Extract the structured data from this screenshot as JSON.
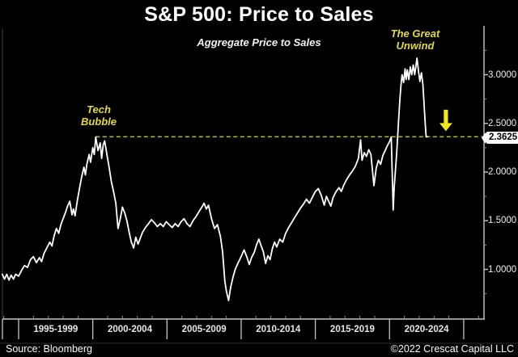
{
  "chart_data": {
    "type": "line",
    "title": "S&P 500: Price to Sales",
    "subtitle": "Aggregate Price to Sales",
    "series": [
      {
        "name": "S&P 500 aggregate price-to-sales ratio",
        "color": "#ffffff",
        "points": [
          [
            1993.9,
            0.95
          ],
          [
            1994.05,
            0.9
          ],
          [
            1994.2,
            0.95
          ],
          [
            1994.35,
            0.89
          ],
          [
            1994.5,
            0.94
          ],
          [
            1994.65,
            0.9
          ],
          [
            1994.8,
            0.95
          ],
          [
            1995.0,
            0.93
          ],
          [
            1995.2,
            0.99
          ],
          [
            1995.4,
            1.04
          ],
          [
            1995.6,
            1.02
          ],
          [
            1995.8,
            1.1
          ],
          [
            1996.0,
            1.13
          ],
          [
            1996.2,
            1.07
          ],
          [
            1996.4,
            1.12
          ],
          [
            1996.55,
            1.08
          ],
          [
            1996.7,
            1.16
          ],
          [
            1996.9,
            1.22
          ],
          [
            1997.1,
            1.28
          ],
          [
            1997.25,
            1.24
          ],
          [
            1997.4,
            1.35
          ],
          [
            1997.55,
            1.42
          ],
          [
            1997.7,
            1.37
          ],
          [
            1997.85,
            1.46
          ],
          [
            1998.0,
            1.52
          ],
          [
            1998.15,
            1.58
          ],
          [
            1998.3,
            1.65
          ],
          [
            1998.45,
            1.7
          ],
          [
            1998.6,
            1.56
          ],
          [
            1998.7,
            1.62
          ],
          [
            1998.8,
            1.55
          ],
          [
            1998.95,
            1.7
          ],
          [
            1999.1,
            1.83
          ],
          [
            1999.25,
            1.95
          ],
          [
            1999.4,
            2.05
          ],
          [
            1999.5,
            1.97
          ],
          [
            1999.6,
            2.08
          ],
          [
            1999.75,
            2.18
          ],
          [
            1999.85,
            2.1
          ],
          [
            2000.0,
            2.25
          ],
          [
            2000.1,
            2.18
          ],
          [
            2000.2,
            2.36
          ],
          [
            2000.35,
            2.22
          ],
          [
            2000.5,
            2.3
          ],
          [
            2000.6,
            2.14
          ],
          [
            2000.7,
            2.28
          ],
          [
            2000.8,
            2.32
          ],
          [
            2000.95,
            2.18
          ],
          [
            2001.1,
            2.05
          ],
          [
            2001.25,
            1.9
          ],
          [
            2001.4,
            1.8
          ],
          [
            2001.55,
            1.68
          ],
          [
            2001.7,
            1.42
          ],
          [
            2001.85,
            1.52
          ],
          [
            2002.0,
            1.64
          ],
          [
            2002.15,
            1.58
          ],
          [
            2002.3,
            1.5
          ],
          [
            2002.45,
            1.38
          ],
          [
            2002.6,
            1.28
          ],
          [
            2002.75,
            1.22
          ],
          [
            2002.9,
            1.33
          ],
          [
            2003.05,
            1.26
          ],
          [
            2003.2,
            1.32
          ],
          [
            2003.35,
            1.38
          ],
          [
            2003.55,
            1.43
          ],
          [
            2003.75,
            1.47
          ],
          [
            2003.95,
            1.51
          ],
          [
            2004.15,
            1.48
          ],
          [
            2004.35,
            1.44
          ],
          [
            2004.55,
            1.47
          ],
          [
            2004.75,
            1.44
          ],
          [
            2004.95,
            1.49
          ],
          [
            2005.15,
            1.46
          ],
          [
            2005.35,
            1.43
          ],
          [
            2005.55,
            1.47
          ],
          [
            2005.75,
            1.44
          ],
          [
            2005.95,
            1.49
          ],
          [
            2006.15,
            1.52
          ],
          [
            2006.35,
            1.47
          ],
          [
            2006.55,
            1.44
          ],
          [
            2006.75,
            1.5
          ],
          [
            2006.95,
            1.54
          ],
          [
            2007.15,
            1.59
          ],
          [
            2007.35,
            1.64
          ],
          [
            2007.5,
            1.68
          ],
          [
            2007.65,
            1.62
          ],
          [
            2007.8,
            1.66
          ],
          [
            2008.0,
            1.52
          ],
          [
            2008.2,
            1.42
          ],
          [
            2008.4,
            1.46
          ],
          [
            2008.6,
            1.34
          ],
          [
            2008.75,
            1.18
          ],
          [
            2008.9,
            0.88
          ],
          [
            2009.0,
            0.78
          ],
          [
            2009.15,
            0.68
          ],
          [
            2009.3,
            0.82
          ],
          [
            2009.45,
            0.92
          ],
          [
            2009.6,
            1.0
          ],
          [
            2009.8,
            1.07
          ],
          [
            2010.0,
            1.13
          ],
          [
            2010.2,
            1.2
          ],
          [
            2010.4,
            1.12
          ],
          [
            2010.55,
            1.05
          ],
          [
            2010.7,
            1.12
          ],
          [
            2010.9,
            1.18
          ],
          [
            2011.05,
            1.26
          ],
          [
            2011.2,
            1.31
          ],
          [
            2011.35,
            1.24
          ],
          [
            2011.5,
            1.18
          ],
          [
            2011.65,
            1.06
          ],
          [
            2011.8,
            1.14
          ],
          [
            2011.95,
            1.1
          ],
          [
            2012.1,
            1.21
          ],
          [
            2012.25,
            1.28
          ],
          [
            2012.4,
            1.23
          ],
          [
            2012.6,
            1.31
          ],
          [
            2012.8,
            1.28
          ],
          [
            2013.0,
            1.37
          ],
          [
            2013.2,
            1.43
          ],
          [
            2013.4,
            1.48
          ],
          [
            2013.6,
            1.53
          ],
          [
            2013.8,
            1.58
          ],
          [
            2014.0,
            1.63
          ],
          [
            2014.2,
            1.67
          ],
          [
            2014.4,
            1.72
          ],
          [
            2014.6,
            1.68
          ],
          [
            2014.8,
            1.74
          ],
          [
            2015.0,
            1.8
          ],
          [
            2015.2,
            1.83
          ],
          [
            2015.4,
            1.76
          ],
          [
            2015.6,
            1.66
          ],
          [
            2015.75,
            1.75
          ],
          [
            2015.9,
            1.7
          ],
          [
            2016.05,
            1.65
          ],
          [
            2016.2,
            1.74
          ],
          [
            2016.4,
            1.8
          ],
          [
            2016.6,
            1.84
          ],
          [
            2016.75,
            1.8
          ],
          [
            2016.9,
            1.86
          ],
          [
            2017.1,
            1.92
          ],
          [
            2017.3,
            1.97
          ],
          [
            2017.5,
            2.01
          ],
          [
            2017.7,
            2.06
          ],
          [
            2017.9,
            2.14
          ],
          [
            2018.05,
            2.33
          ],
          [
            2018.15,
            2.12
          ],
          [
            2018.3,
            2.2
          ],
          [
            2018.45,
            2.16
          ],
          [
            2018.6,
            2.23
          ],
          [
            2018.75,
            2.18
          ],
          [
            2018.95,
            1.86
          ],
          [
            2019.1,
            2.04
          ],
          [
            2019.25,
            2.12
          ],
          [
            2019.4,
            2.08
          ],
          [
            2019.55,
            2.17
          ],
          [
            2019.7,
            2.22
          ],
          [
            2019.85,
            2.27
          ],
          [
            2020.0,
            2.31
          ],
          [
            2020.12,
            2.36
          ],
          [
            2020.25,
            1.61
          ],
          [
            2020.32,
            1.85
          ],
          [
            2020.4,
            2.02
          ],
          [
            2020.48,
            2.18
          ],
          [
            2020.55,
            2.36
          ],
          [
            2020.62,
            2.55
          ],
          [
            2020.7,
            2.75
          ],
          [
            2020.78,
            2.9
          ],
          [
            2020.85,
            3.0
          ],
          [
            2020.95,
            2.92
          ],
          [
            2021.05,
            3.06
          ],
          [
            2021.12,
            2.95
          ],
          [
            2021.2,
            3.05
          ],
          [
            2021.3,
            2.95
          ],
          [
            2021.4,
            3.08
          ],
          [
            2021.5,
            3.0
          ],
          [
            2021.6,
            3.1
          ],
          [
            2021.7,
            3.0
          ],
          [
            2021.85,
            3.17
          ],
          [
            2021.95,
            3.04
          ],
          [
            2022.05,
            2.93
          ],
          [
            2022.15,
            3.02
          ],
          [
            2022.25,
            2.9
          ],
          [
            2022.32,
            2.72
          ],
          [
            2022.4,
            2.52
          ],
          [
            2022.47,
            2.3625
          ],
          [
            2022.55,
            2.3625
          ]
        ]
      }
    ],
    "x_axis": {
      "group_labels": [
        "1995-1999",
        "2000-2004",
        "2005-2009",
        "2010-2014",
        "2015-2019",
        "2020-2024"
      ],
      "group_boundary_years": [
        1995,
        2000,
        2005,
        2010,
        2015,
        2020,
        2025
      ],
      "minor_tick_interval_years": 1,
      "xlim": [
        1993.8,
        2026.4
      ]
    },
    "y_axis": {
      "side": "right",
      "tick_labels": [
        "1.0000",
        "1.5000",
        "2.0000",
        "2.5000",
        "3.0000"
      ],
      "tick_values": [
        1.0,
        1.5,
        2.0,
        2.5,
        3.0
      ],
      "minor_tick_values": [
        0.75,
        1.25,
        1.75,
        2.25,
        2.75,
        3.25
      ],
      "ylim": [
        0.5,
        3.5
      ]
    },
    "reference_line": {
      "value": 2.3625,
      "label": "2.3625",
      "from_year": 2000.2,
      "style": "dashed",
      "color": "#b5ae3c"
    },
    "annotations": {
      "tech_bubble": {
        "line1": "Tech",
        "line2": "Bubble",
        "year": 2000.2,
        "value": 2.36
      },
      "great_unwind": {
        "line1": "The Great",
        "line2": "Unwind",
        "year": 2021.8,
        "value": 3.17
      },
      "arrow": {
        "year": 2023.8,
        "from_value": 2.64,
        "to_value": 2.42,
        "color": "#f2e71c"
      }
    },
    "grid": false,
    "legend": false
  },
  "colors": {
    "background": "#000000",
    "line": "#ffffff",
    "axis": "#c4c4c4",
    "minor_tick": "#8f8f8f",
    "left_frame": "#3f3f3f",
    "footer_divider": "#2b2b2b",
    "annotation_yellow": "#e3da3a",
    "reference_yellow": "#b5ae3c",
    "arrow_yellow": "#f2e71c",
    "tag_background": "#ffffff",
    "tag_text": "#000000"
  },
  "footer": {
    "source": "Source: Bloomberg",
    "copyright": "©2022 Crescat Capital LLC"
  }
}
